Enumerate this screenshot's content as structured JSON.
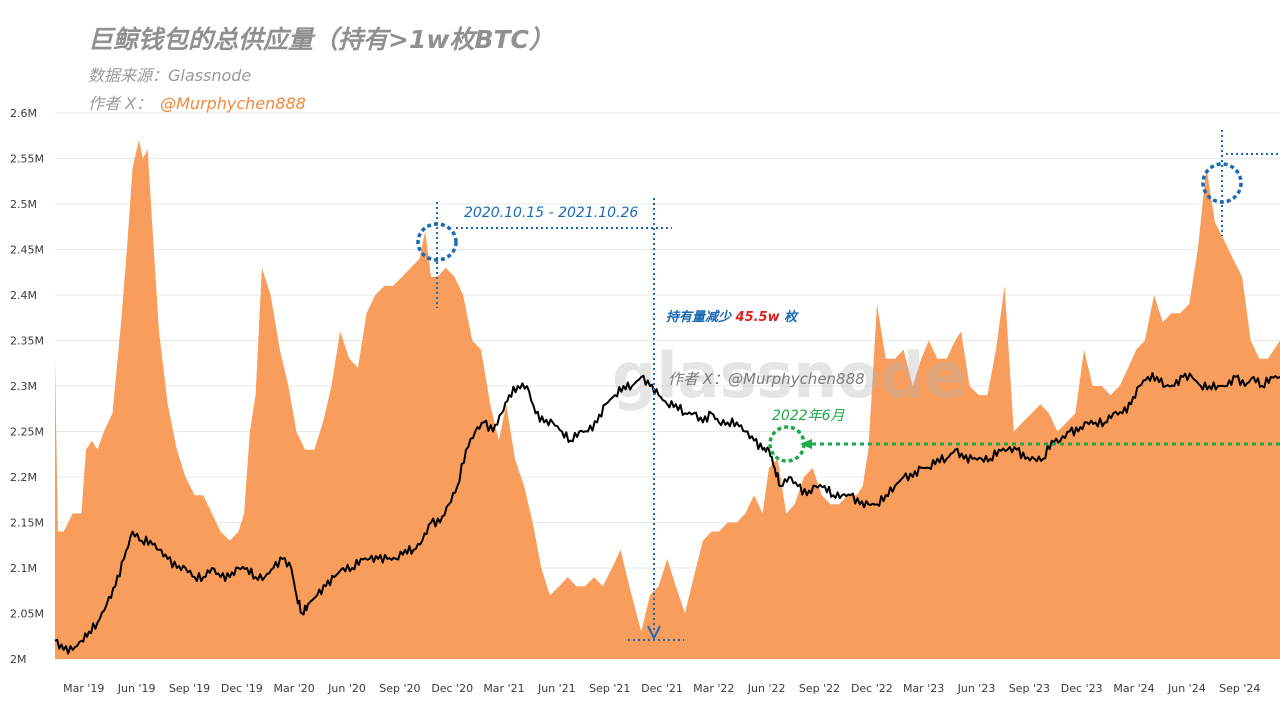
{
  "header": {
    "title": "巨鲸钱包的总供应量（持有>1w枚BTC）",
    "source": "数据来源：Glassnode",
    "author_prefix": "作者 X：",
    "author_handle": "@Murphychen888"
  },
  "colors": {
    "area_fill": "#f99d5c",
    "price_line": "#000000",
    "blue_annotation": "#1a6ab8",
    "green_annotation": "#1fa84a",
    "red_highlight": "#e02020"
  },
  "chart_data": {
    "type": "area",
    "title": "巨鲸钱包的总供应量（持有>1w枚BTC）",
    "xlabel": "",
    "ylabel": "",
    "ylim": [
      2000000,
      2600000
    ],
    "y_ticks": [
      "2.6M",
      "2.55M",
      "2.5M",
      "2.45M",
      "2.4M",
      "2.35M",
      "2.3M",
      "2.25M",
      "2.2M",
      "2.15M",
      "2.1M",
      "2.05M",
      "2M"
    ],
    "y_tick_values": [
      2600000,
      2550000,
      2500000,
      2450000,
      2400000,
      2350000,
      2300000,
      2250000,
      2200000,
      2150000,
      2100000,
      2050000,
      2000000
    ],
    "x_ticks": [
      "Mar '19",
      "Jun '19",
      "Sep '19",
      "Dec '19",
      "Mar '20",
      "Jun '20",
      "Sep '20",
      "Dec '20",
      "Mar '21",
      "Jun '21",
      "Sep '21",
      "Dec '21",
      "Mar '22",
      "Jun '22",
      "Sep '22",
      "Dec '22",
      "Mar '23",
      "Jun '23",
      "Sep '23",
      "Dec '23",
      "Mar '24",
      "Jun '24",
      "Sep '24"
    ],
    "xlim": [
      "2019-01-10",
      "2024-11-10"
    ],
    "grid": true,
    "watermark": "glassnode",
    "series": [
      {
        "type": "area",
        "x": [
          "2019-01-10",
          "2019-01-15",
          "2019-01-25",
          "2019-02-10",
          "2019-02-25",
          "2019-03-05",
          "2019-03-15",
          "2019-03-25",
          "2019-04-05",
          "2019-04-20",
          "2019-05-05",
          "2019-05-15",
          "2019-05-25",
          "2019-06-05",
          "2019-06-12",
          "2019-06-20",
          "2019-06-28",
          "2019-07-10",
          "2019-07-25",
          "2019-08-10",
          "2019-08-25",
          "2019-09-10",
          "2019-09-25",
          "2019-10-10",
          "2019-10-25",
          "2019-11-10",
          "2019-11-25",
          "2019-12-05",
          "2019-12-15",
          "2019-12-25",
          "2020-01-05",
          "2020-01-20",
          "2020-02-05",
          "2020-02-20",
          "2020-03-05",
          "2020-03-20",
          "2020-04-05",
          "2020-04-20",
          "2020-05-05",
          "2020-05-20",
          "2020-06-05",
          "2020-06-20",
          "2020-07-05",
          "2020-07-20",
          "2020-08-05",
          "2020-08-20",
          "2020-09-05",
          "2020-09-20",
          "2020-10-05",
          "2020-10-15",
          "2020-10-25",
          "2020-11-05",
          "2020-11-20",
          "2020-12-05",
          "2020-12-20",
          "2021-01-05",
          "2021-01-20",
          "2021-02-05",
          "2021-02-20",
          "2021-03-05",
          "2021-03-20",
          "2021-04-05",
          "2021-04-20",
          "2021-05-05",
          "2021-05-20",
          "2021-06-05",
          "2021-06-20",
          "2021-07-05",
          "2021-07-20",
          "2021-08-05",
          "2021-08-20",
          "2021-09-05",
          "2021-09-20",
          "2021-10-05",
          "2021-10-26",
          "2021-11-10",
          "2021-11-25",
          "2021-12-10",
          "2021-12-25",
          "2022-01-10",
          "2022-01-25",
          "2022-02-10",
          "2022-02-25",
          "2022-03-10",
          "2022-03-25",
          "2022-04-10",
          "2022-04-25",
          "2022-05-10",
          "2022-05-25",
          "2022-06-05",
          "2022-06-20",
          "2022-07-05",
          "2022-07-20",
          "2022-08-05",
          "2022-08-20",
          "2022-09-05",
          "2022-09-20",
          "2022-10-05",
          "2022-10-20",
          "2022-11-05",
          "2022-11-15",
          "2022-11-25",
          "2022-12-10",
          "2022-12-25",
          "2023-01-10",
          "2023-01-25",
          "2023-02-10",
          "2023-02-25",
          "2023-03-10",
          "2023-03-25",
          "2023-04-10",
          "2023-04-25",
          "2023-05-05",
          "2023-05-20",
          "2023-06-05",
          "2023-06-20",
          "2023-07-05",
          "2023-07-20",
          "2023-08-05",
          "2023-08-20",
          "2023-09-05",
          "2023-09-20",
          "2023-10-05",
          "2023-10-20",
          "2023-11-05",
          "2023-11-20",
          "2023-12-05",
          "2023-12-20",
          "2024-01-05",
          "2024-01-20",
          "2024-02-05",
          "2024-02-20",
          "2024-03-05",
          "2024-03-20",
          "2024-04-05",
          "2024-04-20",
          "2024-05-05",
          "2024-05-20",
          "2024-06-05",
          "2024-06-20",
          "2024-07-05",
          "2024-07-20",
          "2024-08-05",
          "2024-08-20",
          "2024-09-05",
          "2024-09-20",
          "2024-10-05",
          "2024-10-20",
          "2024-11-10"
        ],
        "values": [
          2330000,
          2140000,
          2140000,
          2160000,
          2160000,
          2230000,
          2240000,
          2230000,
          2250000,
          2270000,
          2370000,
          2450000,
          2540000,
          2570000,
          2550000,
          2560000,
          2480000,
          2360000,
          2280000,
          2230000,
          2200000,
          2180000,
          2180000,
          2160000,
          2140000,
          2130000,
          2140000,
          2160000,
          2250000,
          2290000,
          2430000,
          2400000,
          2340000,
          2300000,
          2250000,
          2230000,
          2230000,
          2260000,
          2300000,
          2360000,
          2330000,
          2320000,
          2380000,
          2400000,
          2410000,
          2410000,
          2420000,
          2430000,
          2440000,
          2470000,
          2420000,
          2420000,
          2430000,
          2420000,
          2400000,
          2350000,
          2340000,
          2280000,
          2240000,
          2280000,
          2220000,
          2190000,
          2150000,
          2100000,
          2070000,
          2080000,
          2090000,
          2080000,
          2080000,
          2090000,
          2080000,
          2100000,
          2120000,
          2080000,
          2030000,
          2070000,
          2080000,
          2110000,
          2080000,
          2050000,
          2090000,
          2130000,
          2140000,
          2140000,
          2150000,
          2150000,
          2160000,
          2180000,
          2160000,
          2210000,
          2220000,
          2160000,
          2170000,
          2200000,
          2210000,
          2180000,
          2170000,
          2170000,
          2180000,
          2180000,
          2190000,
          2230000,
          2390000,
          2330000,
          2330000,
          2340000,
          2300000,
          2330000,
          2350000,
          2330000,
          2330000,
          2350000,
          2360000,
          2300000,
          2290000,
          2290000,
          2340000,
          2410000,
          2250000,
          2260000,
          2270000,
          2280000,
          2270000,
          2250000,
          2260000,
          2270000,
          2340000,
          2300000,
          2300000,
          2290000,
          2300000,
          2320000,
          2340000,
          2350000,
          2400000,
          2370000,
          2380000,
          2380000,
          2390000,
          2450000,
          2540000,
          2480000,
          2460000,
          2440000,
          2420000,
          2350000,
          2330000,
          2330000,
          2350000
        ]
      },
      {
        "type": "line",
        "x": [
          "2019-01-10",
          "2019-01-25",
          "2019-02-10",
          "2019-02-25",
          "2019-03-10",
          "2019-03-25",
          "2019-04-10",
          "2019-04-25",
          "2019-05-10",
          "2019-05-25",
          "2019-06-10",
          "2019-06-25",
          "2019-07-10",
          "2019-07-25",
          "2019-08-10",
          "2019-08-25",
          "2019-09-10",
          "2019-09-25",
          "2019-10-10",
          "2019-10-25",
          "2019-11-10",
          "2019-11-25",
          "2019-12-10",
          "2019-12-25",
          "2020-01-10",
          "2020-01-25",
          "2020-02-10",
          "2020-02-25",
          "2020-03-05",
          "2020-03-15",
          "2020-03-25",
          "2020-04-10",
          "2020-04-25",
          "2020-05-10",
          "2020-05-25",
          "2020-06-10",
          "2020-06-25",
          "2020-07-10",
          "2020-07-25",
          "2020-08-10",
          "2020-08-25",
          "2020-09-10",
          "2020-09-25",
          "2020-10-10",
          "2020-10-25",
          "2020-11-10",
          "2020-11-25",
          "2020-12-10",
          "2020-12-25",
          "2021-01-10",
          "2021-01-25",
          "2021-02-10",
          "2021-02-25",
          "2021-03-10",
          "2021-03-25",
          "2021-04-10",
          "2021-04-25",
          "2021-05-10",
          "2021-05-25",
          "2021-06-10",
          "2021-06-25",
          "2021-07-10",
          "2021-07-25",
          "2021-08-10",
          "2021-08-25",
          "2021-09-10",
          "2021-09-25",
          "2021-10-10",
          "2021-10-26",
          "2021-11-10",
          "2021-11-25",
          "2021-12-10",
          "2021-12-25",
          "2022-01-10",
          "2022-01-25",
          "2022-02-10",
          "2022-02-25",
          "2022-03-10",
          "2022-03-25",
          "2022-04-10",
          "2022-04-25",
          "2022-05-10",
          "2022-05-25",
          "2022-06-05",
          "2022-06-15",
          "2022-06-25",
          "2022-07-10",
          "2022-07-25",
          "2022-08-10",
          "2022-08-25",
          "2022-09-10",
          "2022-09-25",
          "2022-10-10",
          "2022-10-25",
          "2022-11-10",
          "2022-11-25",
          "2022-12-10",
          "2022-12-25",
          "2023-01-10",
          "2023-01-25",
          "2023-02-10",
          "2023-02-25",
          "2023-03-10",
          "2023-03-25",
          "2023-04-10",
          "2023-04-25",
          "2023-05-10",
          "2023-05-25",
          "2023-06-10",
          "2023-06-25",
          "2023-07-10",
          "2023-07-25",
          "2023-08-10",
          "2023-08-25",
          "2023-09-10",
          "2023-09-25",
          "2023-10-10",
          "2023-10-25",
          "2023-11-10",
          "2023-11-25",
          "2023-12-10",
          "2023-12-25",
          "2024-01-10",
          "2024-01-25",
          "2024-02-10",
          "2024-02-25",
          "2024-03-10",
          "2024-03-25",
          "2024-04-10",
          "2024-04-25",
          "2024-05-10",
          "2024-05-25",
          "2024-06-10",
          "2024-06-25",
          "2024-07-10",
          "2024-07-25",
          "2024-08-10",
          "2024-08-25",
          "2024-09-10",
          "2024-09-25",
          "2024-10-10",
          "2024-10-25",
          "2024-11-10"
        ],
        "values": [
          2020000,
          2010000,
          2010000,
          2020000,
          2030000,
          2040000,
          2060000,
          2080000,
          2110000,
          2140000,
          2130000,
          2130000,
          2120000,
          2110000,
          2100000,
          2100000,
          2090000,
          2090000,
          2100000,
          2090000,
          2090000,
          2100000,
          2100000,
          2090000,
          2090000,
          2100000,
          2110000,
          2100000,
          2070000,
          2050000,
          2060000,
          2070000,
          2080000,
          2090000,
          2100000,
          2100000,
          2110000,
          2110000,
          2110000,
          2110000,
          2110000,
          2120000,
          2120000,
          2130000,
          2150000,
          2150000,
          2170000,
          2190000,
          2230000,
          2250000,
          2260000,
          2250000,
          2270000,
          2290000,
          2300000,
          2300000,
          2270000,
          2260000,
          2260000,
          2250000,
          2240000,
          2250000,
          2250000,
          2260000,
          2280000,
          2290000,
          2300000,
          2300000,
          2310000,
          2300000,
          2290000,
          2280000,
          2280000,
          2270000,
          2270000,
          2260000,
          2270000,
          2260000,
          2260000,
          2260000,
          2250000,
          2240000,
          2230000,
          2230000,
          2210000,
          2190000,
          2200000,
          2190000,
          2180000,
          2190000,
          2190000,
          2180000,
          2180000,
          2180000,
          2170000,
          2170000,
          2170000,
          2180000,
          2190000,
          2200000,
          2200000,
          2210000,
          2210000,
          2220000,
          2220000,
          2230000,
          2220000,
          2220000,
          2220000,
          2220000,
          2230000,
          2230000,
          2230000,
          2220000,
          2220000,
          2220000,
          2240000,
          2240000,
          2250000,
          2250000,
          2260000,
          2260000,
          2260000,
          2270000,
          2270000,
          2280000,
          2300000,
          2310000,
          2310000,
          2300000,
          2300000,
          2310000,
          2310000,
          2300000,
          2300000,
          2300000,
          2300000,
          2310000,
          2300000,
          2310000,
          2300000,
          2310000,
          2310000
        ]
      }
    ],
    "annotations": [
      {
        "text": "2020.10.15 - 2021.10.26",
        "color": "#1a6ab8"
      },
      {
        "text_prefix": "持有量减少 ",
        "text_value": "45.5w",
        "text_suffix": " 枚",
        "color": "#1a6ab8",
        "value_color": "#e02020"
      },
      {
        "text": "2022年6月",
        "color": "#1fa84a"
      },
      {
        "text": "作者 X：@Murphychen888",
        "color": "#7a7a7a"
      }
    ]
  }
}
